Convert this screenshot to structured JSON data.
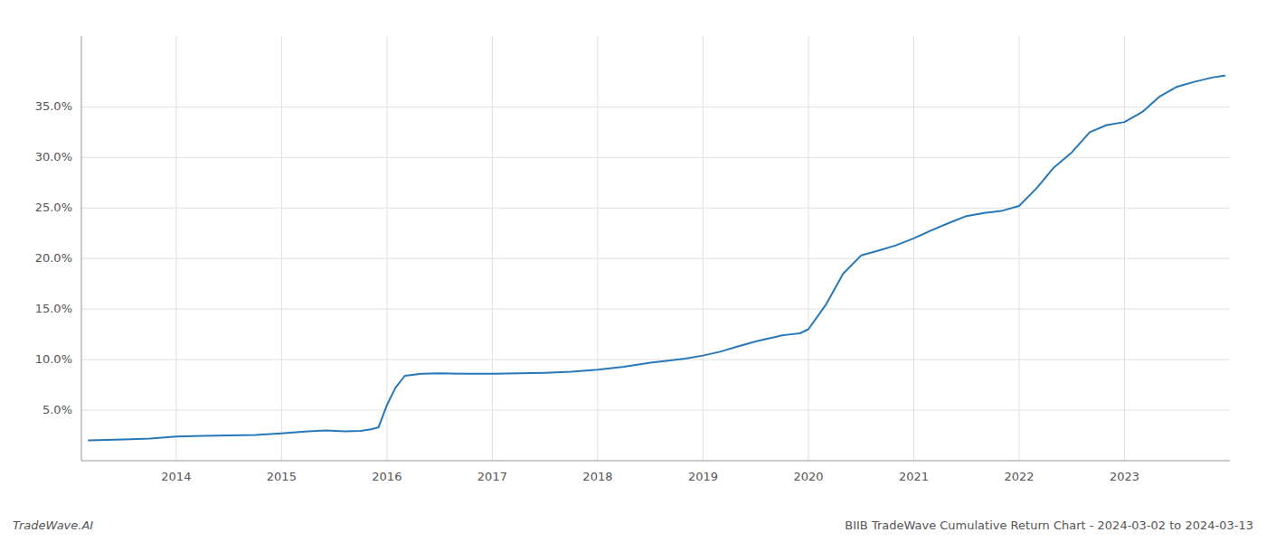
{
  "chart_data": {
    "type": "line",
    "title": "BIIB TradeWave Cumulative Return Chart - 2024-03-02 to 2024-03-13",
    "annotations": [
      "TradeWave.AI"
    ],
    "color": "#2878b8",
    "grid": true,
    "x": [
      2013.17,
      2013.5,
      2013.75,
      2014.0,
      2014.25,
      2014.5,
      2014.75,
      2015.0,
      2015.25,
      2015.42,
      2015.6,
      2015.75,
      2015.85,
      2015.92,
      2016.0,
      2016.08,
      2016.17,
      2016.33,
      2016.5,
      2016.75,
      2017.0,
      2017.25,
      2017.5,
      2017.75,
      2018.0,
      2018.25,
      2018.5,
      2018.67,
      2018.83,
      2019.0,
      2019.17,
      2019.33,
      2019.5,
      2019.58,
      2019.67,
      2019.75,
      2019.83,
      2019.92,
      2020.0,
      2020.17,
      2020.33,
      2020.5,
      2020.67,
      2020.83,
      2021.0,
      2021.17,
      2021.33,
      2021.5,
      2021.67,
      2021.83,
      2022.0,
      2022.17,
      2022.33,
      2022.5,
      2022.67,
      2022.83,
      2023.0,
      2023.17,
      2023.33,
      2023.5,
      2023.67,
      2023.83,
      2023.95
    ],
    "values": [
      2.0,
      2.1,
      2.2,
      2.4,
      2.45,
      2.5,
      2.55,
      2.7,
      2.9,
      3.0,
      2.9,
      2.95,
      3.1,
      3.3,
      5.5,
      7.2,
      8.4,
      8.6,
      8.65,
      8.6,
      8.6,
      8.65,
      8.7,
      8.8,
      9.0,
      9.3,
      9.7,
      9.9,
      10.1,
      10.4,
      10.8,
      11.3,
      11.8,
      12.0,
      12.2,
      12.4,
      12.5,
      12.6,
      13.0,
      15.5,
      18.5,
      20.3,
      20.8,
      21.3,
      22.0,
      22.8,
      23.5,
      24.2,
      24.5,
      24.7,
      25.2,
      27.0,
      29.0,
      30.5,
      32.5,
      33.2,
      33.5,
      34.5,
      36.0,
      37.0,
      37.5,
      37.9,
      38.1
    ],
    "xlim": [
      2013.1,
      2024.0
    ],
    "xticks": [
      2014,
      2015,
      2016,
      2017,
      2018,
      2019,
      2020,
      2021,
      2022,
      2023
    ],
    "ylim": [
      0.0,
      42.0
    ],
    "yticks": [
      {
        "value": 5.0,
        "label": "5.0%"
      },
      {
        "value": 10.0,
        "label": "10.0%"
      },
      {
        "value": 15.0,
        "label": "15.0%"
      },
      {
        "value": 20.0,
        "label": "20.0%"
      },
      {
        "value": 25.0,
        "label": "25.0%"
      },
      {
        "value": 30.0,
        "label": "30.0%"
      },
      {
        "value": 35.0,
        "label": "35.0%"
      }
    ]
  }
}
